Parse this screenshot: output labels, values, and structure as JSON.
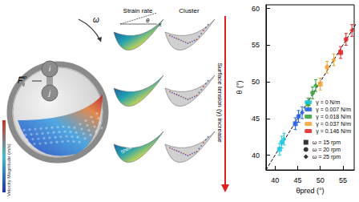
{
  "chart_data": {
    "type": "scatter",
    "xlabel": "θpred (°)",
    "ylabel": "θ (°)",
    "xlim": [
      38,
      57.5
    ],
    "xticks": [
      40,
      45,
      50,
      55
    ],
    "ylim": [
      38,
      60.5
    ],
    "yticks": [
      40,
      45,
      50,
      55,
      60
    ],
    "grid": false,
    "legend": "lower right",
    "reference_line": {
      "values": [
        [
          38,
          38
        ],
        [
          60.5,
          60.5
        ]
      ],
      "line_style": "dashed",
      "color": "#000000"
    },
    "series": [
      {
        "name": "γ = 0 N/m",
        "color": "#18c8e0",
        "x": [
          41.0,
          41.5,
          42.0
        ],
        "values": [
          40.8,
          41.8,
          42.2
        ],
        "errors": [
          0.8,
          0.8,
          0.8
        ],
        "markers": [
          "square",
          "circle",
          "diamond"
        ]
      },
      {
        "name": "γ = 0.007 N/m",
        "color": "#2060e0",
        "x": [
          44.5,
          45.2,
          46.0
        ],
        "values": [
          44.3,
          45.3,
          45.8
        ],
        "errors": [
          0.8,
          0.8,
          0.8
        ],
        "markers": [
          "square",
          "circle",
          "diamond"
        ]
      },
      {
        "name": "γ = 0.018 N/m",
        "color": "#30a030",
        "x": [
          47.3,
          48.3,
          49.0
        ],
        "values": [
          47.0,
          48.5,
          49.5
        ],
        "errors": [
          0.8,
          0.8,
          0.8
        ],
        "markers": [
          "square",
          "circle",
          "diamond"
        ]
      },
      {
        "name": "γ = 0.037 N/m",
        "color": "#f0a030",
        "x": [
          50.0,
          51.5,
          53.0
        ],
        "values": [
          49.7,
          52.0,
          53.0
        ],
        "errors": [
          0.8,
          0.8,
          0.8
        ],
        "markers": [
          "square",
          "circle",
          "diamond"
        ]
      },
      {
        "name": "γ = 0.146 N/m",
        "color": "#e02020",
        "x": [
          54.5,
          55.7,
          57.0
        ],
        "values": [
          54.0,
          55.8,
          57.0
        ],
        "errors": [
          0.8,
          0.8,
          0.8
        ],
        "markers": [
          "square",
          "circle",
          "diamond"
        ]
      }
    ],
    "marker_legend": [
      {
        "name": "ω = 15 rpm",
        "marker": "square",
        "color": "#000000"
      },
      {
        "name": "ω = 20 rpm",
        "marker": "circle",
        "color": "#000000"
      },
      {
        "name": "ω = 25 rpm",
        "marker": "diamond",
        "color": "#000000"
      }
    ]
  },
  "figure": {
    "colorbar_label": "Velocity Magnitude (m/s)",
    "force_label": {
      "text": "F",
      "sub": "ij",
      "sup": "cap"
    },
    "particle_labels": [
      "i",
      "j"
    ],
    "rotation_label": "ω",
    "panel_titles": [
      "Strain rate",
      "Cluster"
    ],
    "strain_labels": [
      "θ",
      "x"
    ],
    "band_label": "Shear band",
    "trend_label": "Surface tension (γ) increase"
  }
}
